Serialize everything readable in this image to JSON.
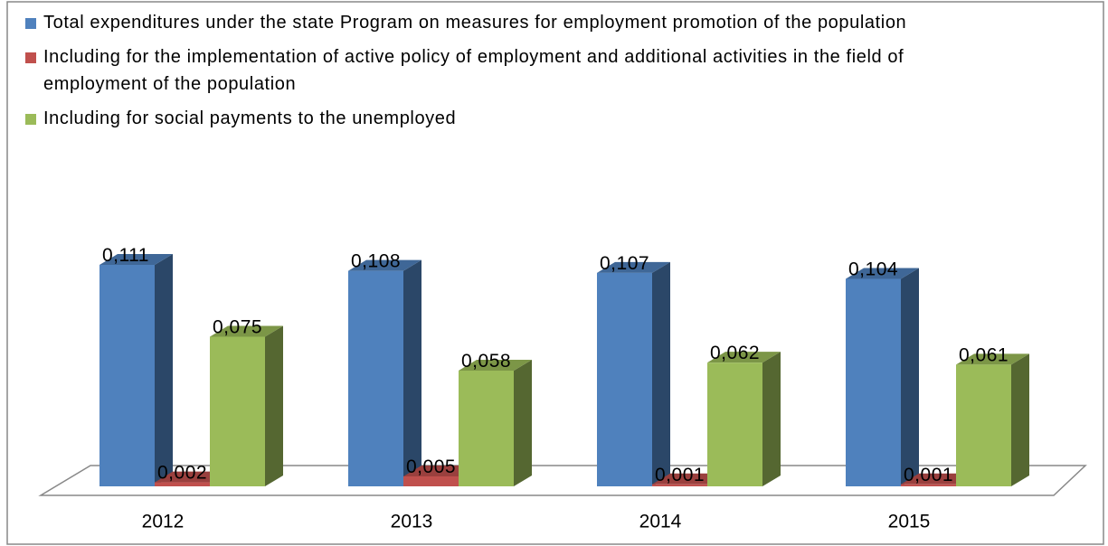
{
  "chart_data": {
    "type": "bar3d",
    "categories": [
      "2012",
      "2013",
      "2014",
      "2015"
    ],
    "series": [
      {
        "name": "Total expenditures under the state Program on measures for employment promotion of the population",
        "color": "#4f81bd",
        "values": [
          0.111,
          0.108,
          0.107,
          0.104
        ],
        "value_labels": [
          "0,111",
          "0,108",
          "0,107",
          "0,104"
        ]
      },
      {
        "name": "Including for the implementation of active policy of employment and additional activities in the field of employment of the population",
        "color": "#c0504d",
        "values": [
          0.002,
          0.005,
          0.001,
          0.001
        ],
        "value_labels": [
          "0,002",
          "0,005",
          "0,001",
          "0,001"
        ]
      },
      {
        "name": "Including for social payments to the unemployed",
        "color": "#9bbb59",
        "values": [
          0.075,
          0.058,
          0.062,
          0.061
        ],
        "value_labels": [
          "0,075",
          "0,058",
          "0,062",
          "0,061"
        ]
      }
    ]
  }
}
